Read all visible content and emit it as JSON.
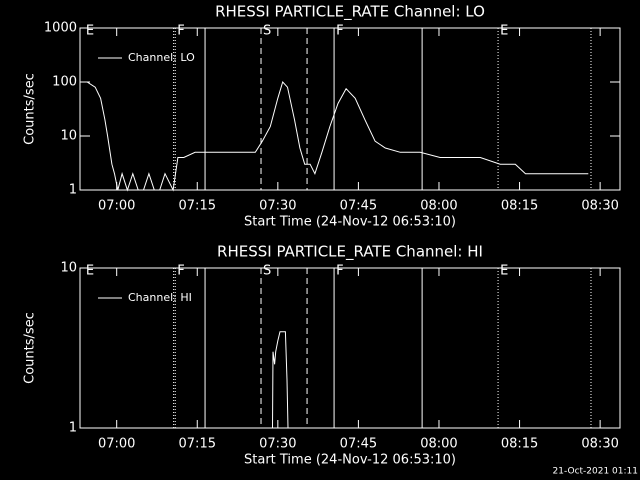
{
  "chart_data": [
    {
      "type": "line",
      "title": "RHESSI PARTICLE_RATE Channel: LO",
      "x_label": "Start Time (24-Nov-12 06:53:10)",
      "y_label": "Counts/sec",
      "log_y": true,
      "ylim": [
        1,
        1000
      ],
      "yticks": [
        1,
        10,
        100,
        1000
      ],
      "xlim": [
        413.17,
        513.7
      ],
      "xticks": [
        {
          "value": 420,
          "label": "07:00"
        },
        {
          "value": 435,
          "label": "07:15"
        },
        {
          "value": 450,
          "label": "07:30"
        },
        {
          "value": 465,
          "label": "07:45"
        },
        {
          "value": 480,
          "label": "08:00"
        },
        {
          "value": 495,
          "label": "08:15"
        },
        {
          "value": 510,
          "label": "08:30"
        }
      ],
      "series": [
        {
          "name": "Channel: LO",
          "color": "#ffffff",
          "x": [
            413.2,
            414.5,
            416,
            417,
            417.8,
            418.3,
            419.1,
            419.6,
            420.2,
            421,
            422,
            423,
            424,
            425,
            426,
            427,
            428,
            429,
            430.5,
            431.4,
            432.5,
            434.6,
            436,
            438.3,
            440,
            443,
            445,
            445.8,
            447.1,
            448.6,
            450,
            450.9,
            451.8,
            453.1,
            454.1,
            455,
            456,
            456.9,
            458.2,
            459.7,
            461.2,
            462.7,
            464.4,
            466.2,
            468.1,
            470,
            472.8,
            476.5,
            480.2,
            484,
            487.7,
            491.4,
            494.2,
            496.1,
            499.8,
            503.5,
            507.8
          ],
          "values": [
            100,
            100,
            80,
            50,
            20,
            10,
            3,
            2,
            1,
            2,
            1,
            2,
            1,
            1,
            2,
            1,
            1,
            2,
            1,
            4,
            4,
            5,
            5,
            5,
            5,
            5,
            5,
            5,
            8,
            15,
            50,
            100,
            80,
            20,
            6,
            3,
            3,
            2,
            5,
            15,
            40,
            75,
            50,
            20,
            8,
            6,
            5,
            5,
            4,
            4,
            4,
            3,
            3,
            2,
            2,
            2,
            2
          ]
        }
      ],
      "events": [
        {
          "x": 413.9,
          "label": "E"
        },
        {
          "x": 430.6,
          "style": "dotted"
        },
        {
          "x": 430.9,
          "style": "dotted",
          "label": "F"
        },
        {
          "x": 436.45,
          "style": "solid"
        },
        {
          "x": 446.87,
          "style": "dashed",
          "label": "S"
        },
        {
          "x": 455.44,
          "style": "dashed"
        },
        {
          "x": 460.47,
          "style": "solid",
          "label": "F"
        },
        {
          "x": 476.86,
          "style": "solid"
        },
        {
          "x": 491.0,
          "style": "dotted",
          "label": "E"
        },
        {
          "x": 508.3,
          "style": "dotted"
        }
      ]
    },
    {
      "type": "line",
      "title": "RHESSI PARTICLE_RATE Channel: HI",
      "x_label": "Start Time (24-Nov-12 06:53:10)",
      "y_label": "Counts/sec",
      "log_y": true,
      "ylim": [
        1,
        10
      ],
      "yticks": [
        1,
        10
      ],
      "xlim": [
        413.17,
        513.7
      ],
      "xticks": [
        {
          "value": 420,
          "label": "07:00"
        },
        {
          "value": 435,
          "label": "07:15"
        },
        {
          "value": 450,
          "label": "07:30"
        },
        {
          "value": 465,
          "label": "07:45"
        },
        {
          "value": 480,
          "label": "08:00"
        },
        {
          "value": 495,
          "label": "08:15"
        },
        {
          "value": 510,
          "label": "08:30"
        }
      ],
      "series": [
        {
          "name": "Channel: HI",
          "color": "#ffffff",
          "x": [
            449.0,
            449.1,
            449.4,
            449.6,
            450.0,
            450.4,
            451.4,
            451.7,
            451.9
          ],
          "values": [
            1,
            3,
            2.5,
            3,
            3.5,
            4,
            4,
            2,
            1
          ]
        }
      ],
      "events": [
        {
          "x": 413.9,
          "label": "E"
        },
        {
          "x": 430.6,
          "style": "dotted"
        },
        {
          "x": 430.9,
          "style": "dotted",
          "label": "F"
        },
        {
          "x": 436.45,
          "style": "solid"
        },
        {
          "x": 446.87,
          "style": "dashed",
          "label": "S"
        },
        {
          "x": 455.44,
          "style": "dashed"
        },
        {
          "x": 460.47,
          "style": "solid",
          "label": "F"
        },
        {
          "x": 476.86,
          "style": "solid"
        },
        {
          "x": 491.0,
          "style": "dotted",
          "label": "E"
        },
        {
          "x": 508.3,
          "style": "dotted"
        }
      ]
    }
  ],
  "footer": "21-Oct-2021 01:11"
}
